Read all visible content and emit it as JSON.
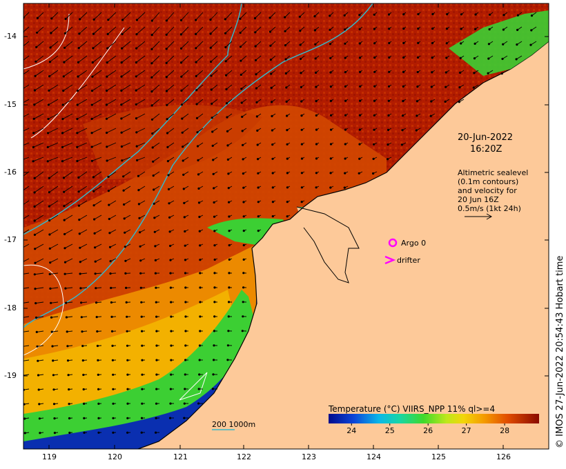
{
  "map": {
    "date": "20-Jun-2022",
    "time": "16:20Z",
    "altimetry_note": [
      "Altimetric sealevel",
      "(0.1m contours)",
      "and velocity for",
      "20 Jun 16Z",
      "0.5m/s (1kt 24h)"
    ],
    "legend": {
      "argo_label": "Argo 0",
      "drifter_label": "drifter",
      "argo_color": "#ff00ff",
      "drifter_color": "#ff00ff"
    },
    "scale_label": "200  1000m",
    "copyright": "© IMOS 27-Jun-2022 20:54:43 Hobart time",
    "colorbar": {
      "title": "Temperature (°C) VIIRS_NPP 11% ql>=4",
      "ticks": [
        "24",
        "25",
        "26",
        "27",
        "28"
      ],
      "range": [
        23.4,
        28.9
      ]
    },
    "axes": {
      "x_ticks": [
        "119",
        "120",
        "121",
        "122",
        "123",
        "124",
        "125",
        "126"
      ],
      "y_ticks": [
        "-14",
        "-15",
        "-16",
        "-17",
        "-18",
        "-19"
      ]
    },
    "colors": {
      "land": "#fdc999",
      "warm": "#b01a00",
      "mid": "#d94a00",
      "cool": "#f3a500",
      "green": "#2ccf3b",
      "blue": "#0a2fb0",
      "contour_cyan": "#36b7c9",
      "contour_white": "#ffffff"
    }
  }
}
